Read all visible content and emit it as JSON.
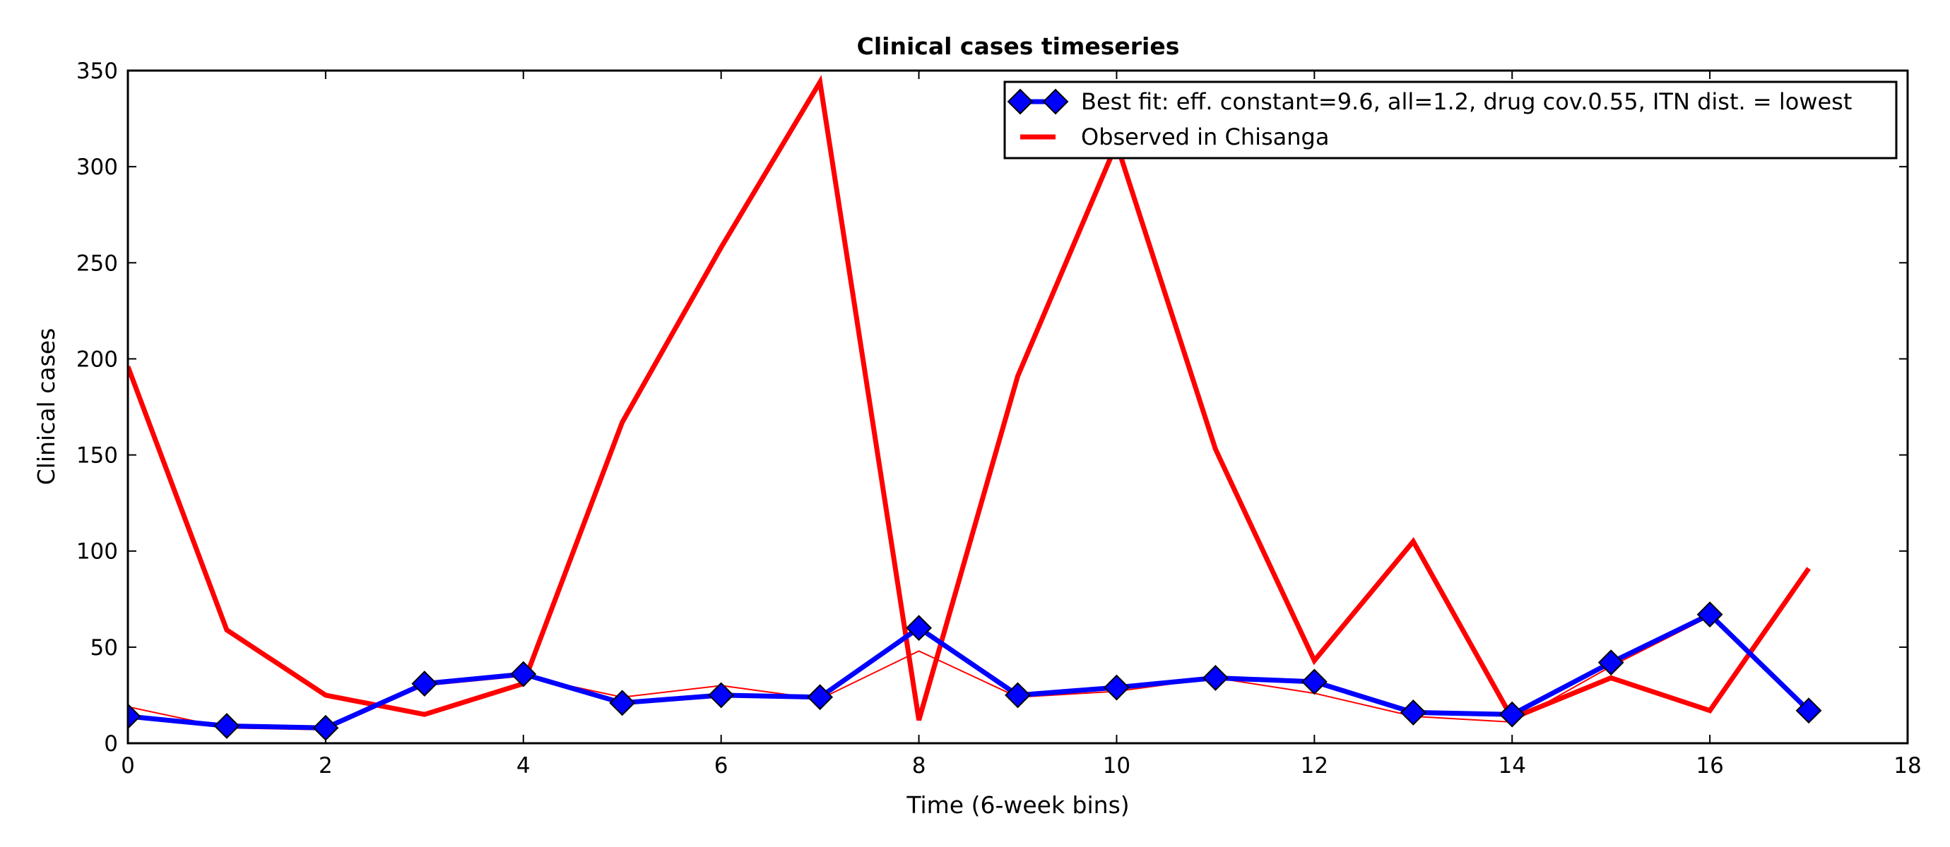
{
  "chart_data": {
    "type": "line",
    "title": "Clinical cases timeseries",
    "xlabel": "Time (6-week bins)",
    "ylabel": "Clinical cases",
    "xlim": [
      0,
      18
    ],
    "ylim": [
      0,
      350
    ],
    "xticks": [
      0,
      2,
      4,
      6,
      8,
      10,
      12,
      14,
      16,
      18
    ],
    "yticks": [
      0,
      50,
      100,
      150,
      200,
      250,
      300,
      350
    ],
    "grid": false,
    "legend_position": "top-right",
    "series": [
      {
        "name": "Best fit: eff. constant=9.6, all=1.2, drug cov.0.55, ITN dist. = lowest",
        "color": "#0000ff",
        "marker": "diamond",
        "x": [
          0,
          1,
          2,
          3,
          4,
          5,
          6,
          7,
          8,
          9,
          10,
          11,
          12,
          13,
          14,
          15,
          16,
          17
        ],
        "values": [
          14,
          9,
          8,
          31,
          36,
          21,
          25,
          24,
          60,
          25,
          29,
          34,
          32,
          16,
          15,
          42,
          67,
          17
        ]
      },
      {
        "name": "Observed in Chisanga",
        "color": "#ff0000",
        "x": [
          0,
          1,
          2,
          3,
          4,
          5,
          6,
          7,
          8,
          9,
          10,
          11,
          12,
          13,
          14,
          15,
          16,
          17
        ],
        "values": [
          196,
          59,
          25,
          15,
          31,
          167,
          258,
          344,
          12,
          191,
          312,
          153,
          43,
          105,
          13,
          34,
          17,
          91
        ]
      },
      {
        "color": "#ff0000",
        "thin": true,
        "x": [
          0,
          1,
          2,
          3,
          4,
          5,
          6,
          7,
          8,
          9,
          10,
          11,
          12,
          13,
          14,
          15,
          16,
          17
        ],
        "values": [
          19,
          8,
          7,
          30,
          35,
          24,
          30,
          23,
          48,
          24,
          27,
          34,
          26,
          14,
          11,
          40,
          66,
          16
        ]
      }
    ]
  }
}
